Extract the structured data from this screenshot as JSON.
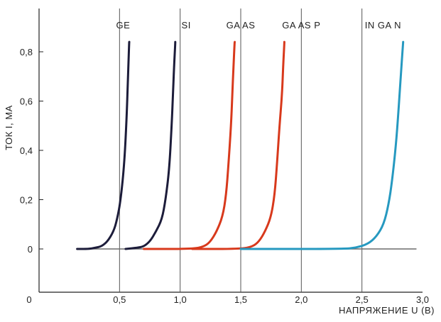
{
  "chart_data": {
    "type": "line",
    "title": "",
    "xlabel": "НАПРЯЖЕНИЕ U (В)",
    "ylabel": "ТОК I, MA",
    "xlim": [
      0,
      3.0
    ],
    "ylim": [
      -0.17,
      0.95
    ],
    "x_ticks": [
      {
        "value": 0,
        "label": "0"
      },
      {
        "value": 0.5,
        "label": "0,5"
      },
      {
        "value": 1.0,
        "label": "1,0"
      },
      {
        "value": 1.5,
        "label": "1,5"
      },
      {
        "value": 2.0,
        "label": "2,0"
      },
      {
        "value": 2.5,
        "label": "2,5"
      },
      {
        "value": 3.0,
        "label": "3,0"
      }
    ],
    "y_ticks": [
      {
        "value": 0,
        "label": "0"
      },
      {
        "value": 0.2,
        "label": "0,2"
      },
      {
        "value": 0.4,
        "label": "0,4"
      },
      {
        "value": 0.6,
        "label": "0,6"
      },
      {
        "value": 0.8,
        "label": "0,8"
      }
    ],
    "vertical_lines_x": [
      0.5,
      1.0,
      1.5,
      2.0,
      2.5
    ],
    "baseline": {
      "x_start": 0.15,
      "x_end": 2.95,
      "y": 0
    },
    "series": [
      {
        "name": "GE",
        "color": "#1c1c3a",
        "x": [
          0.15,
          0.25,
          0.3,
          0.35,
          0.4,
          0.45,
          0.48,
          0.51,
          0.54,
          0.56,
          0.57,
          0.58
        ],
        "y": [
          0,
          0,
          0.005,
          0.01,
          0.03,
          0.07,
          0.12,
          0.2,
          0.35,
          0.55,
          0.7,
          0.84
        ]
      },
      {
        "name": "SI",
        "color": "#1c1c3a",
        "x": [
          0.55,
          0.65,
          0.7,
          0.75,
          0.8,
          0.85,
          0.88,
          0.91,
          0.93,
          0.94,
          0.95,
          0.96
        ],
        "y": [
          0,
          0.005,
          0.01,
          0.03,
          0.07,
          0.12,
          0.2,
          0.32,
          0.5,
          0.62,
          0.74,
          0.84
        ]
      },
      {
        "name": "GA AS",
        "color": "#d8391c",
        "x": [
          0.7,
          1.1,
          1.2,
          1.25,
          1.3,
          1.35,
          1.38,
          1.4,
          1.42,
          1.43,
          1.44,
          1.45
        ],
        "y": [
          0,
          0,
          0.01,
          0.03,
          0.07,
          0.13,
          0.22,
          0.35,
          0.5,
          0.62,
          0.74,
          0.84
        ]
      },
      {
        "name": "GA AS P",
        "color": "#d8391c",
        "x": [
          1.1,
          1.5,
          1.6,
          1.65,
          1.7,
          1.75,
          1.78,
          1.8,
          1.82,
          1.84,
          1.85,
          1.86
        ],
        "y": [
          0,
          0,
          0.01,
          0.03,
          0.07,
          0.13,
          0.22,
          0.35,
          0.5,
          0.62,
          0.74,
          0.84
        ]
      },
      {
        "name": "IN GA N",
        "color": "#2699c0",
        "x": [
          1.5,
          2.35,
          2.45,
          2.55,
          2.62,
          2.68,
          2.72,
          2.75,
          2.78,
          2.8,
          2.82,
          2.84
        ],
        "y": [
          0,
          0,
          0.005,
          0.02,
          0.05,
          0.1,
          0.18,
          0.28,
          0.42,
          0.55,
          0.7,
          0.84
        ]
      }
    ],
    "series_label_x": [
      0.53,
      1.05,
      1.5,
      2.0,
      2.85
    ],
    "axis_color": "#222222",
    "grid": false,
    "legend": "none"
  }
}
